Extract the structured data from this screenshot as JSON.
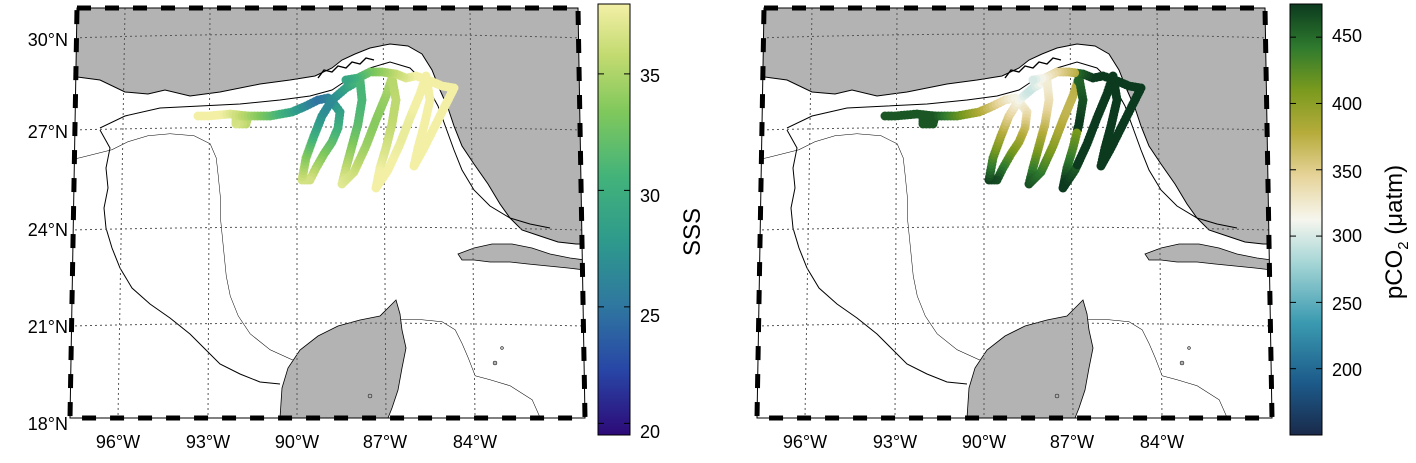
{
  "left_map": {
    "lat_labels": [
      "30°N",
      "27°N",
      "24°N",
      "21°N",
      "18°N"
    ],
    "lon_labels": [
      "96°W",
      "93°W",
      "90°W",
      "87°W",
      "84°W"
    ]
  },
  "right_map": {
    "lon_labels": [
      "96°W",
      "93°W",
      "90°W",
      "87°W",
      "84°W"
    ]
  },
  "left_colorbar": {
    "label": "SSS",
    "ticks": [
      "35",
      "30",
      "25",
      "20"
    ],
    "range": [
      19.5,
      38
    ],
    "tick_values": [
      35,
      30,
      25,
      20
    ],
    "colormap": [
      "#2d0a78",
      "#2846a6",
      "#2f77a0",
      "#2e9a8c",
      "#43b37a",
      "#80c85c",
      "#c2da70",
      "#f3f0a6"
    ]
  },
  "right_colorbar": {
    "label_main": "pCO",
    "label_sub": "2",
    "label_unit": " (μatm)",
    "ticks": [
      "450",
      "400",
      "350",
      "300",
      "250",
      "200"
    ],
    "range": [
      150,
      475
    ],
    "tick_values": [
      450,
      400,
      350,
      300,
      250,
      200
    ],
    "colormap": [
      "#1a2a4a",
      "#1c5a8a",
      "#3a9ab0",
      "#a6d6d6",
      "#f6f6ee",
      "#e6d49a",
      "#b6ac3c",
      "#7a9a1e",
      "#2e7a2e",
      "#0c3a1e"
    ]
  },
  "colors": {
    "land": "#b3b3b3",
    "ocean": "#ffffff",
    "coast": "#000000",
    "grid": "#555555"
  }
}
